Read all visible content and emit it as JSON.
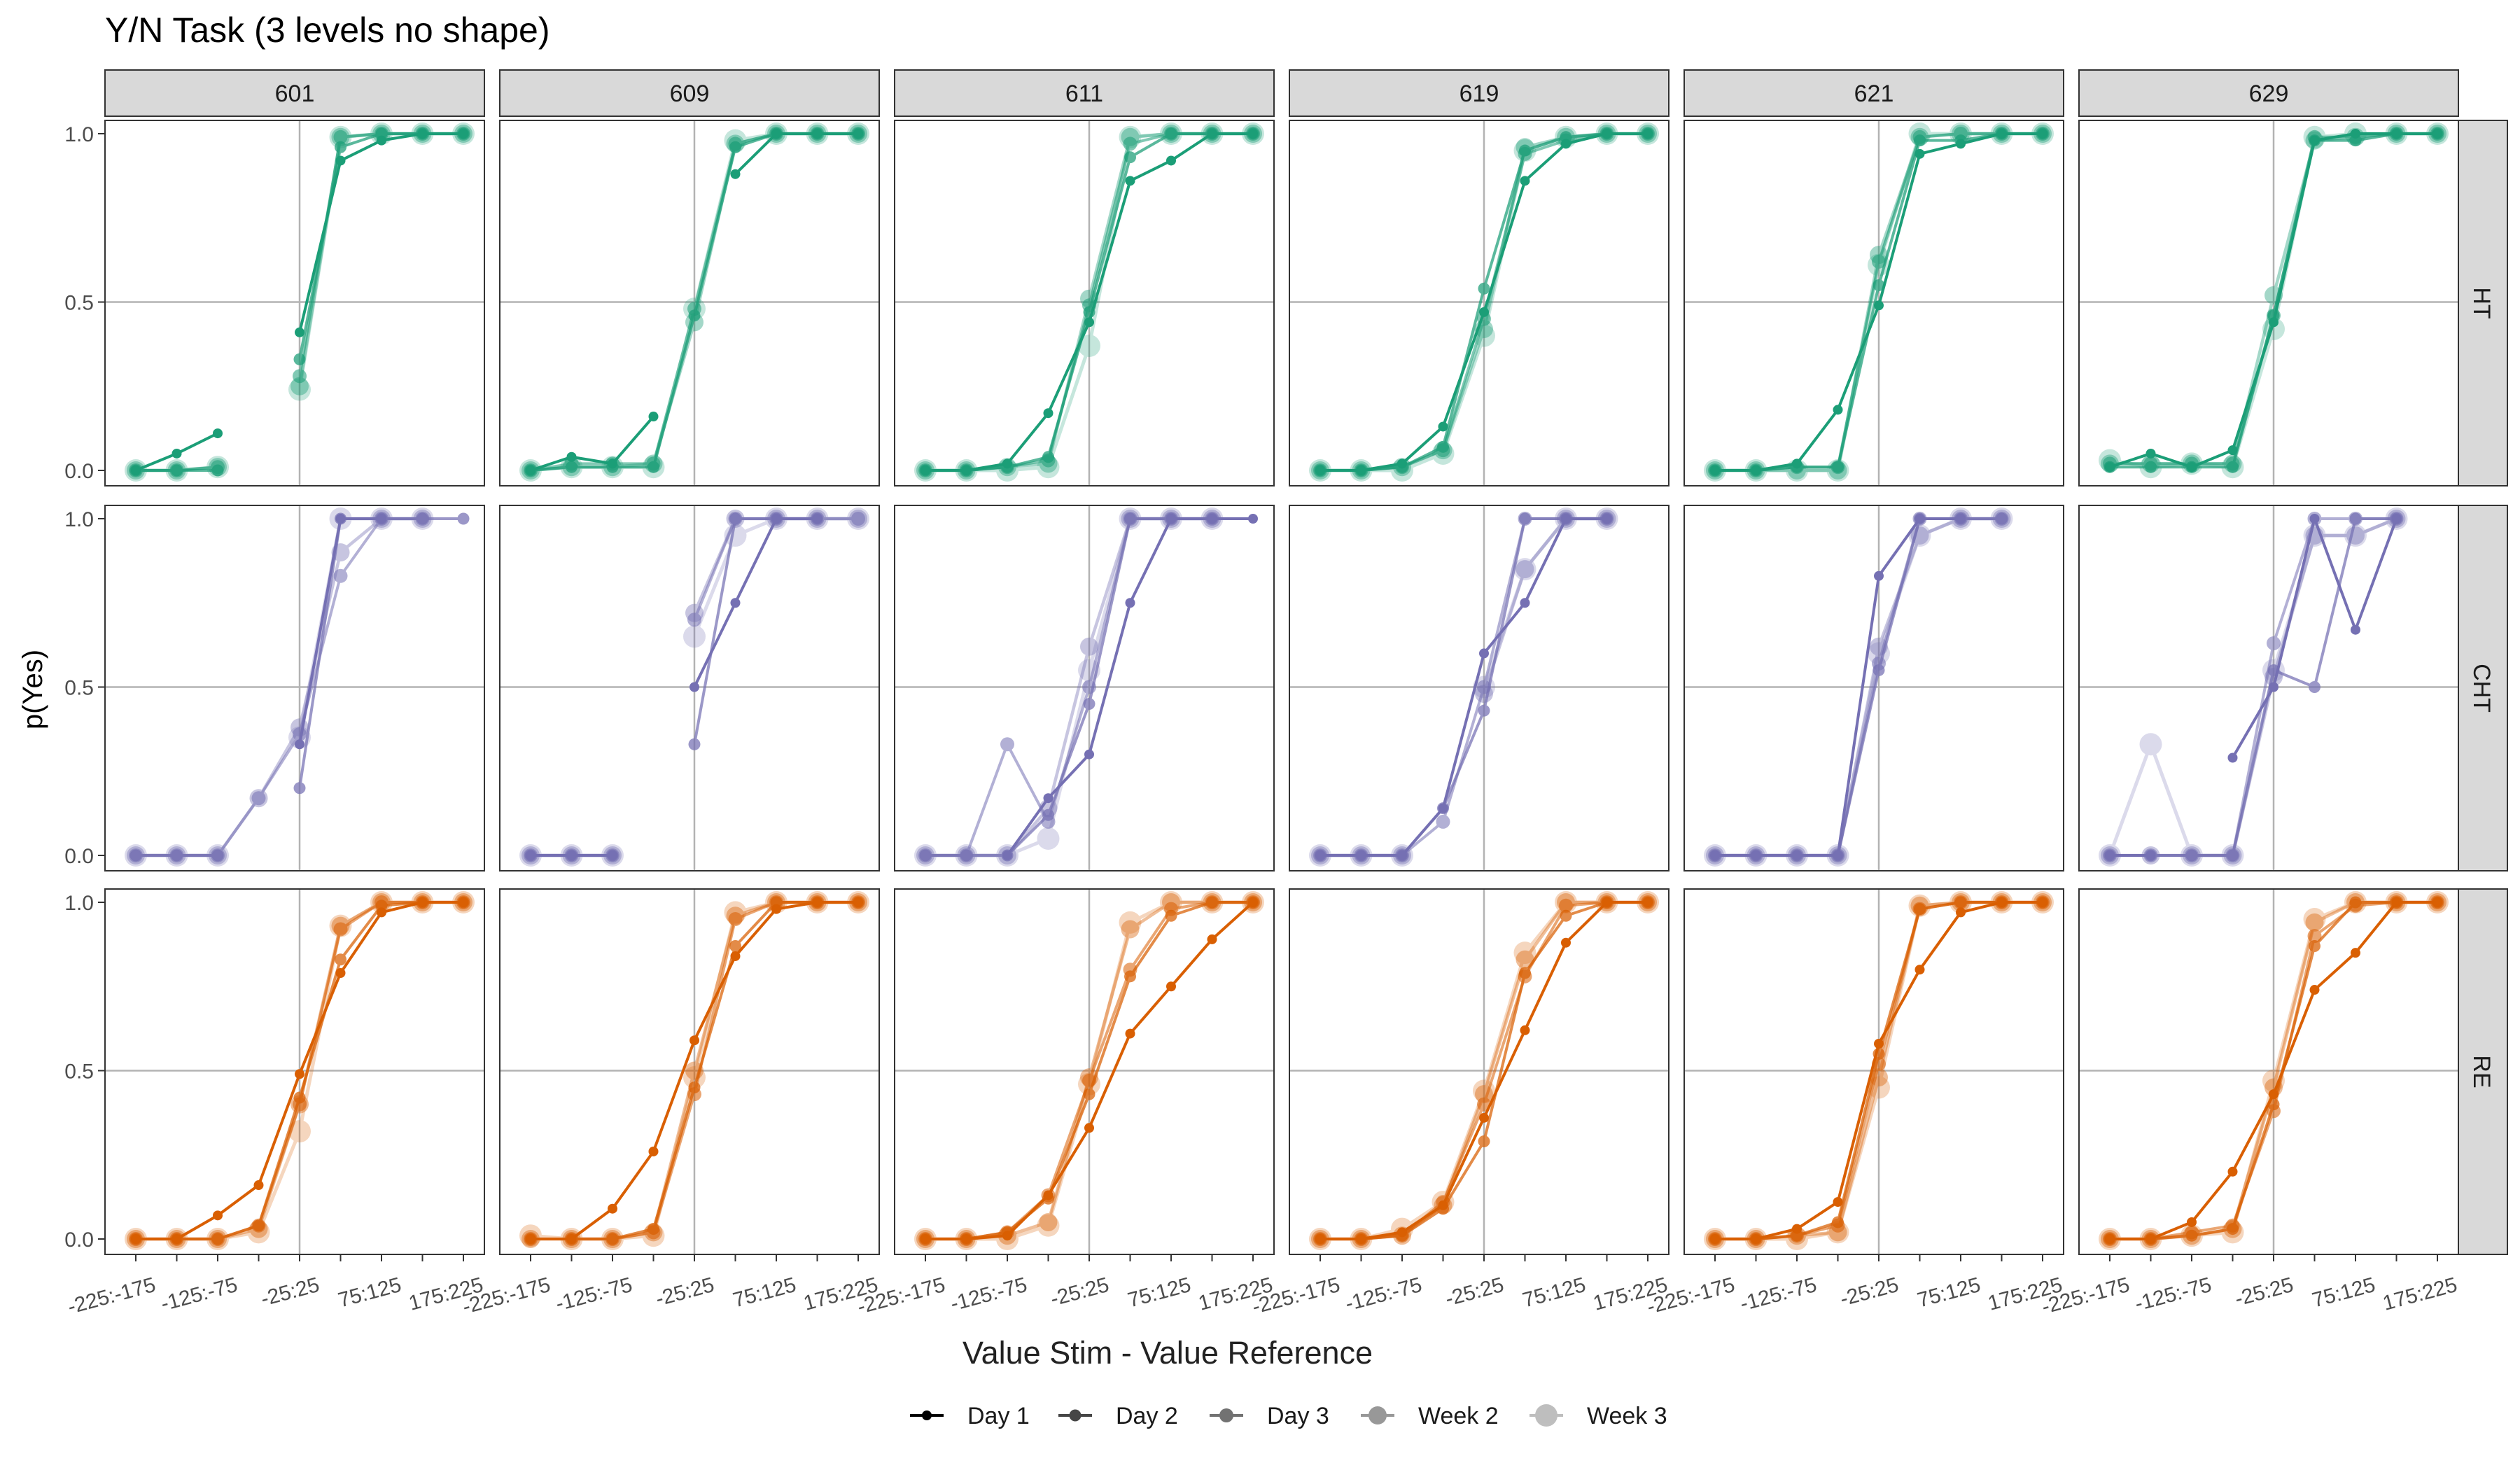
{
  "chart_data": {
    "type": "line",
    "title": "Y/N Task (3 levels no shape)",
    "xlabel": "Value Stim - Value Reference",
    "ylabel": "p(Yes)",
    "categories": [
      "-225:-175",
      "-175:-125",
      "-125:-75",
      "-75:-25",
      "-25:25",
      "25:75",
      "75:125",
      "125:175",
      "175:225"
    ],
    "x_tick_labels": [
      "-225:-175",
      "-125:-75",
      "-25:25",
      "75:125",
      "175:225"
    ],
    "y_ticks": [
      "0.0",
      "0.5",
      "1.0"
    ],
    "ylim": [
      0,
      1
    ],
    "grid": "reference lines at x = -25:25 and y = 0.5",
    "subjects": [
      "601",
      "609",
      "611",
      "619",
      "621",
      "629"
    ],
    "conditions": [
      "HT",
      "CHT",
      "RE"
    ],
    "condition_colors": {
      "HT": "#1b9e77",
      "CHT": "#7570b3",
      "RE": "#d95f02"
    },
    "sessions": [
      "Day 1",
      "Day 2",
      "Day 3",
      "Week 2",
      "Week 3"
    ],
    "session_opacity": [
      1.0,
      0.72,
      0.55,
      0.4,
      0.25
    ],
    "legend_position": "bottom",
    "panels": {
      "HT": {
        "601": [
          [
            0,
            0.05,
            0.11,
            null,
            0.41,
            0.92,
            0.98,
            1,
            1
          ],
          [
            0,
            0,
            0,
            null,
            0.33,
            0.96,
            1,
            1,
            1
          ],
          [
            0,
            0,
            0.01,
            null,
            0.28,
            0.99,
            1,
            1,
            1
          ],
          [
            0,
            0,
            0.01,
            null,
            0.25,
            0.99,
            1,
            1,
            1
          ],
          [
            0,
            0,
            0.01,
            null,
            0.24,
            0.99,
            1,
            1,
            1
          ]
        ],
        "609": [
          [
            0,
            0.04,
            0.02,
            0.16,
            null,
            0.88,
            1,
            1,
            1
          ],
          [
            0,
            0.01,
            0.01,
            0.01,
            0.46,
            0.96,
            1,
            1,
            1
          ],
          [
            0,
            0.02,
            0.02,
            0.02,
            0.48,
            0.97,
            1,
            1,
            1
          ],
          [
            0,
            0.01,
            0.01,
            0.02,
            0.44,
            0.97,
            1,
            1,
            1
          ],
          [
            0,
            0.01,
            0.01,
            0.01,
            0.48,
            0.98,
            1,
            1,
            1
          ]
        ],
        "611": [
          [
            0,
            0,
            0.02,
            0.17,
            0.44,
            0.86,
            0.92,
            1,
            1
          ],
          [
            0,
            0,
            0.01,
            0.04,
            0.47,
            0.93,
            1,
            1,
            1
          ],
          [
            0,
            0,
            0.01,
            0.03,
            0.49,
            0.97,
            1,
            1,
            1
          ],
          [
            0,
            0,
            0.01,
            0.02,
            0.51,
            0.99,
            1,
            1,
            1
          ],
          [
            0,
            0,
            0,
            0.01,
            0.37,
            0.99,
            1,
            1,
            1
          ]
        ],
        "619": [
          [
            0,
            0,
            0.02,
            0.13,
            0.47,
            0.86,
            0.97,
            1,
            1
          ],
          [
            0,
            0,
            0.01,
            0.07,
            0.54,
            0.95,
            0.99,
            1,
            1
          ],
          [
            0,
            0,
            0.01,
            0.06,
            0.45,
            0.94,
            0.98,
            1,
            1
          ],
          [
            0,
            0,
            0.01,
            0.06,
            0.42,
            0.96,
            0.99,
            1,
            1
          ],
          [
            0,
            0,
            0,
            0.05,
            0.4,
            0.95,
            0.99,
            1,
            1
          ]
        ],
        "621": [
          [
            0,
            0,
            0.02,
            0.18,
            0.49,
            0.94,
            0.97,
            1,
            1
          ],
          [
            0,
            0,
            0.01,
            0.01,
            0.55,
            0.98,
            0.98,
            1,
            1
          ],
          [
            0,
            0,
            0.01,
            0.01,
            0.62,
            0.99,
            1,
            1,
            1
          ],
          [
            0,
            0,
            0,
            0,
            0.64,
            0.99,
            1,
            1,
            1
          ],
          [
            0,
            0,
            0,
            0,
            0.61,
            1,
            1,
            1,
            1
          ]
        ],
        "629": [
          [
            0.01,
            0.05,
            0.01,
            0.06,
            0.44,
            0.98,
            1,
            1,
            1
          ],
          [
            0.01,
            0.01,
            0.01,
            0.01,
            0.46,
            0.98,
            0.98,
            1,
            1
          ],
          [
            0.02,
            0.02,
            0.02,
            0.02,
            0.46,
            0.99,
            0.99,
            1,
            1
          ],
          [
            0.02,
            0.02,
            0.02,
            0.02,
            0.52,
            0.98,
            0.99,
            1,
            1
          ],
          [
            0.03,
            0.01,
            0.02,
            0.01,
            0.42,
            0.99,
            1,
            1,
            1
          ]
        ]
      },
      "CHT": {
        "601": [
          [
            null,
            null,
            null,
            null,
            0.33,
            1,
            1,
            null,
            null
          ],
          [
            0,
            0,
            0,
            null,
            0.2,
            1,
            1,
            1,
            1
          ],
          [
            0,
            0,
            0,
            0.17,
            0.36,
            0.83,
            1,
            1,
            null
          ],
          [
            0,
            0,
            0,
            0.17,
            0.38,
            0.9,
            1,
            1,
            null
          ],
          [
            0,
            0,
            0,
            null,
            0.35,
            1,
            1,
            1,
            null
          ]
        ],
        "609": [
          [
            0,
            0,
            0,
            null,
            0.5,
            0.75,
            1,
            1,
            null
          ],
          [
            0,
            0,
            0,
            null,
            0.33,
            1,
            1,
            1,
            null
          ],
          [
            0,
            0,
            0,
            null,
            0.7,
            1,
            1,
            1,
            1
          ],
          [
            0,
            0,
            0,
            null,
            0.72,
            1,
            1,
            1,
            1
          ],
          [
            0,
            0,
            0,
            null,
            0.65,
            0.95,
            1,
            1,
            1
          ]
        ],
        "611": [
          [
            null,
            null,
            0,
            0.17,
            0.3,
            0.75,
            1,
            1,
            1
          ],
          [
            0,
            0,
            0,
            0.12,
            0.45,
            1,
            1,
            1,
            null
          ],
          [
            0,
            0,
            0.33,
            0.1,
            0.5,
            1,
            1,
            1,
            null
          ],
          [
            0,
            0,
            0,
            0.14,
            0.62,
            1,
            1,
            1,
            null
          ],
          [
            0,
            0,
            0,
            0.05,
            0.55,
            1,
            1,
            1,
            null
          ]
        ],
        "619": [
          [
            0,
            0,
            0,
            0.14,
            0.6,
            0.75,
            1,
            1,
            null
          ],
          [
            0,
            0,
            0,
            0.14,
            0.43,
            1,
            1,
            1,
            null
          ],
          [
            0,
            0,
            0,
            0.1,
            0.5,
            1,
            1,
            1,
            null
          ],
          [
            0,
            0,
            0,
            null,
            0.48,
            0.85,
            1,
            1,
            null
          ],
          [
            0,
            0,
            0,
            null,
            0.5,
            0.85,
            1,
            1,
            null
          ]
        ],
        "621": [
          [
            0,
            0,
            0,
            0,
            0.83,
            1,
            1,
            null,
            null
          ],
          [
            0,
            0,
            0,
            0,
            0.55,
            1,
            1,
            1,
            null
          ],
          [
            0,
            0,
            0,
            0,
            0.57,
            1,
            1,
            1,
            null
          ],
          [
            0,
            0,
            0,
            0,
            0.62,
            0.95,
            1,
            1,
            null
          ],
          [
            0,
            0,
            0,
            0,
            0.6,
            0.95,
            1,
            1,
            null
          ]
        ],
        "629": [
          [
            0,
            0,
            null,
            0.29,
            0.5,
            1,
            0.67,
            1,
            null
          ],
          [
            0,
            0,
            0,
            0,
            0.55,
            0.5,
            1,
            1,
            null
          ],
          [
            0,
            0,
            0,
            0,
            0.63,
            1,
            1,
            1,
            null
          ],
          [
            0,
            0,
            0,
            0,
            0.53,
            0.95,
            0.95,
            1,
            null
          ],
          [
            0,
            0.33,
            0,
            0,
            0.55,
            0.95,
            0.95,
            1,
            null
          ]
        ]
      },
      "RE": {
        "601": [
          [
            0,
            0,
            0.07,
            0.16,
            0.49,
            0.79,
            0.97,
            1,
            1
          ],
          [
            0,
            0,
            0,
            0.04,
            0.42,
            0.83,
            0.99,
            1,
            1
          ],
          [
            0,
            0,
            0,
            0.04,
            0.4,
            0.92,
            1,
            1,
            1
          ],
          [
            0,
            0,
            0,
            0.03,
            0.4,
            0.93,
            1,
            1,
            1
          ],
          [
            0,
            0,
            0,
            0.02,
            0.32,
            0.93,
            1,
            1,
            1
          ]
        ],
        "609": [
          [
            0,
            0,
            0.09,
            0.26,
            0.59,
            0.84,
            0.98,
            1,
            1
          ],
          [
            0,
            0,
            0,
            0.03,
            0.45,
            0.87,
            1,
            1,
            1
          ],
          [
            0,
            0,
            0,
            0.02,
            0.43,
            0.95,
            1,
            1,
            1
          ],
          [
            0,
            0,
            0,
            0.02,
            0.5,
            0.96,
            1,
            1,
            1
          ],
          [
            0.01,
            0,
            0,
            0.01,
            0.48,
            0.97,
            1,
            1,
            1
          ]
        ],
        "611": [
          [
            0,
            0,
            0.01,
            0.13,
            0.33,
            0.61,
            0.75,
            0.89,
            1
          ],
          [
            0,
            0,
            0.02,
            0.12,
            0.43,
            0.78,
            0.96,
            1,
            1
          ],
          [
            0,
            0,
            0.02,
            0.13,
            0.47,
            0.8,
            0.98,
            1,
            1
          ],
          [
            0,
            0,
            0.01,
            0.05,
            0.48,
            0.92,
            1,
            1,
            1
          ],
          [
            0,
            0,
            0,
            0.04,
            0.46,
            0.94,
            1,
            1,
            1
          ]
        ],
        "619": [
          [
            0,
            0,
            0.02,
            0.1,
            0.36,
            0.62,
            0.88,
            1,
            1
          ],
          [
            0,
            0,
            0.01,
            0.09,
            0.29,
            0.79,
            0.96,
            1,
            1
          ],
          [
            0,
            0,
            0.01,
            0.11,
            0.4,
            0.78,
            0.99,
            1,
            1
          ],
          [
            0,
            0,
            0.01,
            0.1,
            0.43,
            0.83,
            1,
            1,
            1
          ],
          [
            0,
            0,
            0.03,
            0.11,
            0.44,
            0.85,
            1,
            1,
            1
          ]
        ],
        "621": [
          [
            0,
            0,
            0.03,
            0.11,
            0.58,
            0.8,
            0.97,
            1,
            1
          ],
          [
            0,
            0,
            0.01,
            0.05,
            0.55,
            0.98,
            1,
            1,
            1
          ],
          [
            0,
            0,
            0.01,
            0.04,
            0.52,
            0.98,
            1,
            1,
            1
          ],
          [
            0,
            0,
            0.01,
            0.02,
            0.48,
            0.99,
            1,
            1,
            1
          ],
          [
            0,
            0,
            0,
            0.02,
            0.45,
            0.99,
            1,
            1,
            1
          ]
        ],
        "629": [
          [
            0,
            0,
            0.05,
            0.2,
            0.43,
            0.74,
            0.85,
            1,
            1
          ],
          [
            0,
            0,
            0.01,
            0.03,
            0.4,
            0.87,
            1,
            1,
            1
          ],
          [
            0,
            0,
            0.02,
            0.04,
            0.38,
            0.9,
            0.99,
            1,
            1
          ],
          [
            0,
            0,
            0.01,
            0.03,
            0.45,
            0.94,
            1,
            1,
            1
          ],
          [
            0,
            0,
            0.01,
            0.02,
            0.47,
            0.95,
            1,
            1,
            1
          ]
        ]
      }
    }
  }
}
